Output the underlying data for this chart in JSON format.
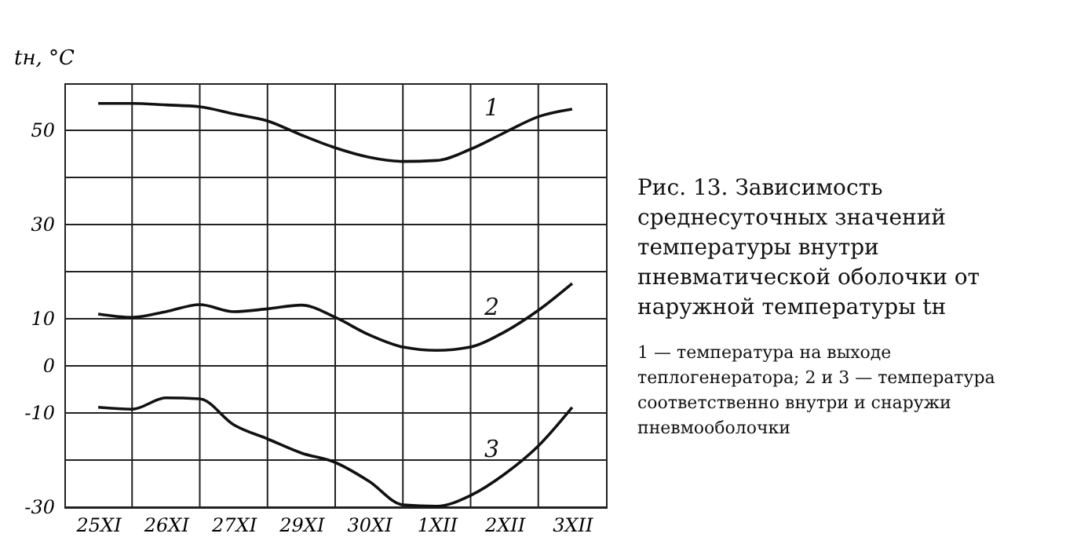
{
  "chart_data": {
    "type": "line",
    "title": "Рис. 13. Зависимость среднесуточных значений температуры внутри пневматической оболочки от наружной температуры tн",
    "ylabel": "tн, °C",
    "annotations": [
      "1 — температура на выходе теплогенератора; 2 и 3 — температура соответственно внутри и снаружи пневмооболочки"
    ],
    "categories": [
      null,
      "25XI",
      null,
      "26XI",
      null,
      "27XI",
      null,
      "29XI",
      null,
      "30XI",
      null,
      "1XII",
      null,
      "2XII",
      null,
      "3XII",
      null
    ],
    "ylim": [
      -30,
      60
    ],
    "yticks": [
      -30,
      {
        "value": -20,
        "label": null
      },
      -10,
      0,
      10,
      {
        "value": 20,
        "label": null
      },
      30,
      {
        "value": 40,
        "label": null
      },
      50
    ],
    "grid": true,
    "marker": "none",
    "line_style": "solid",
    "series": [
      {
        "name": "1",
        "color": "#111111",
        "values": [
          null,
          55.7,
          55.7,
          55.4,
          55,
          53.5,
          52,
          49,
          46.3,
          44.3,
          43.4,
          43.6,
          46,
          49.5,
          52.9,
          54.5,
          null
        ]
      },
      {
        "name": "2",
        "color": "#111111",
        "values": [
          null,
          11,
          10.3,
          11.5,
          13,
          11.5,
          12.1,
          12.9,
          10.3,
          6.6,
          4,
          3.3,
          4,
          7.2,
          11.8,
          17.5,
          null
        ]
      },
      {
        "name": "3",
        "color": "#111111",
        "values": [
          null,
          -8.8,
          -9.2,
          -6.8,
          -7,
          -12.5,
          -15.5,
          -18.5,
          -20.5,
          -24.5,
          -29.5,
          -29.8,
          -27.5,
          -23,
          -17,
          -8.8,
          null
        ]
      }
    ]
  }
}
